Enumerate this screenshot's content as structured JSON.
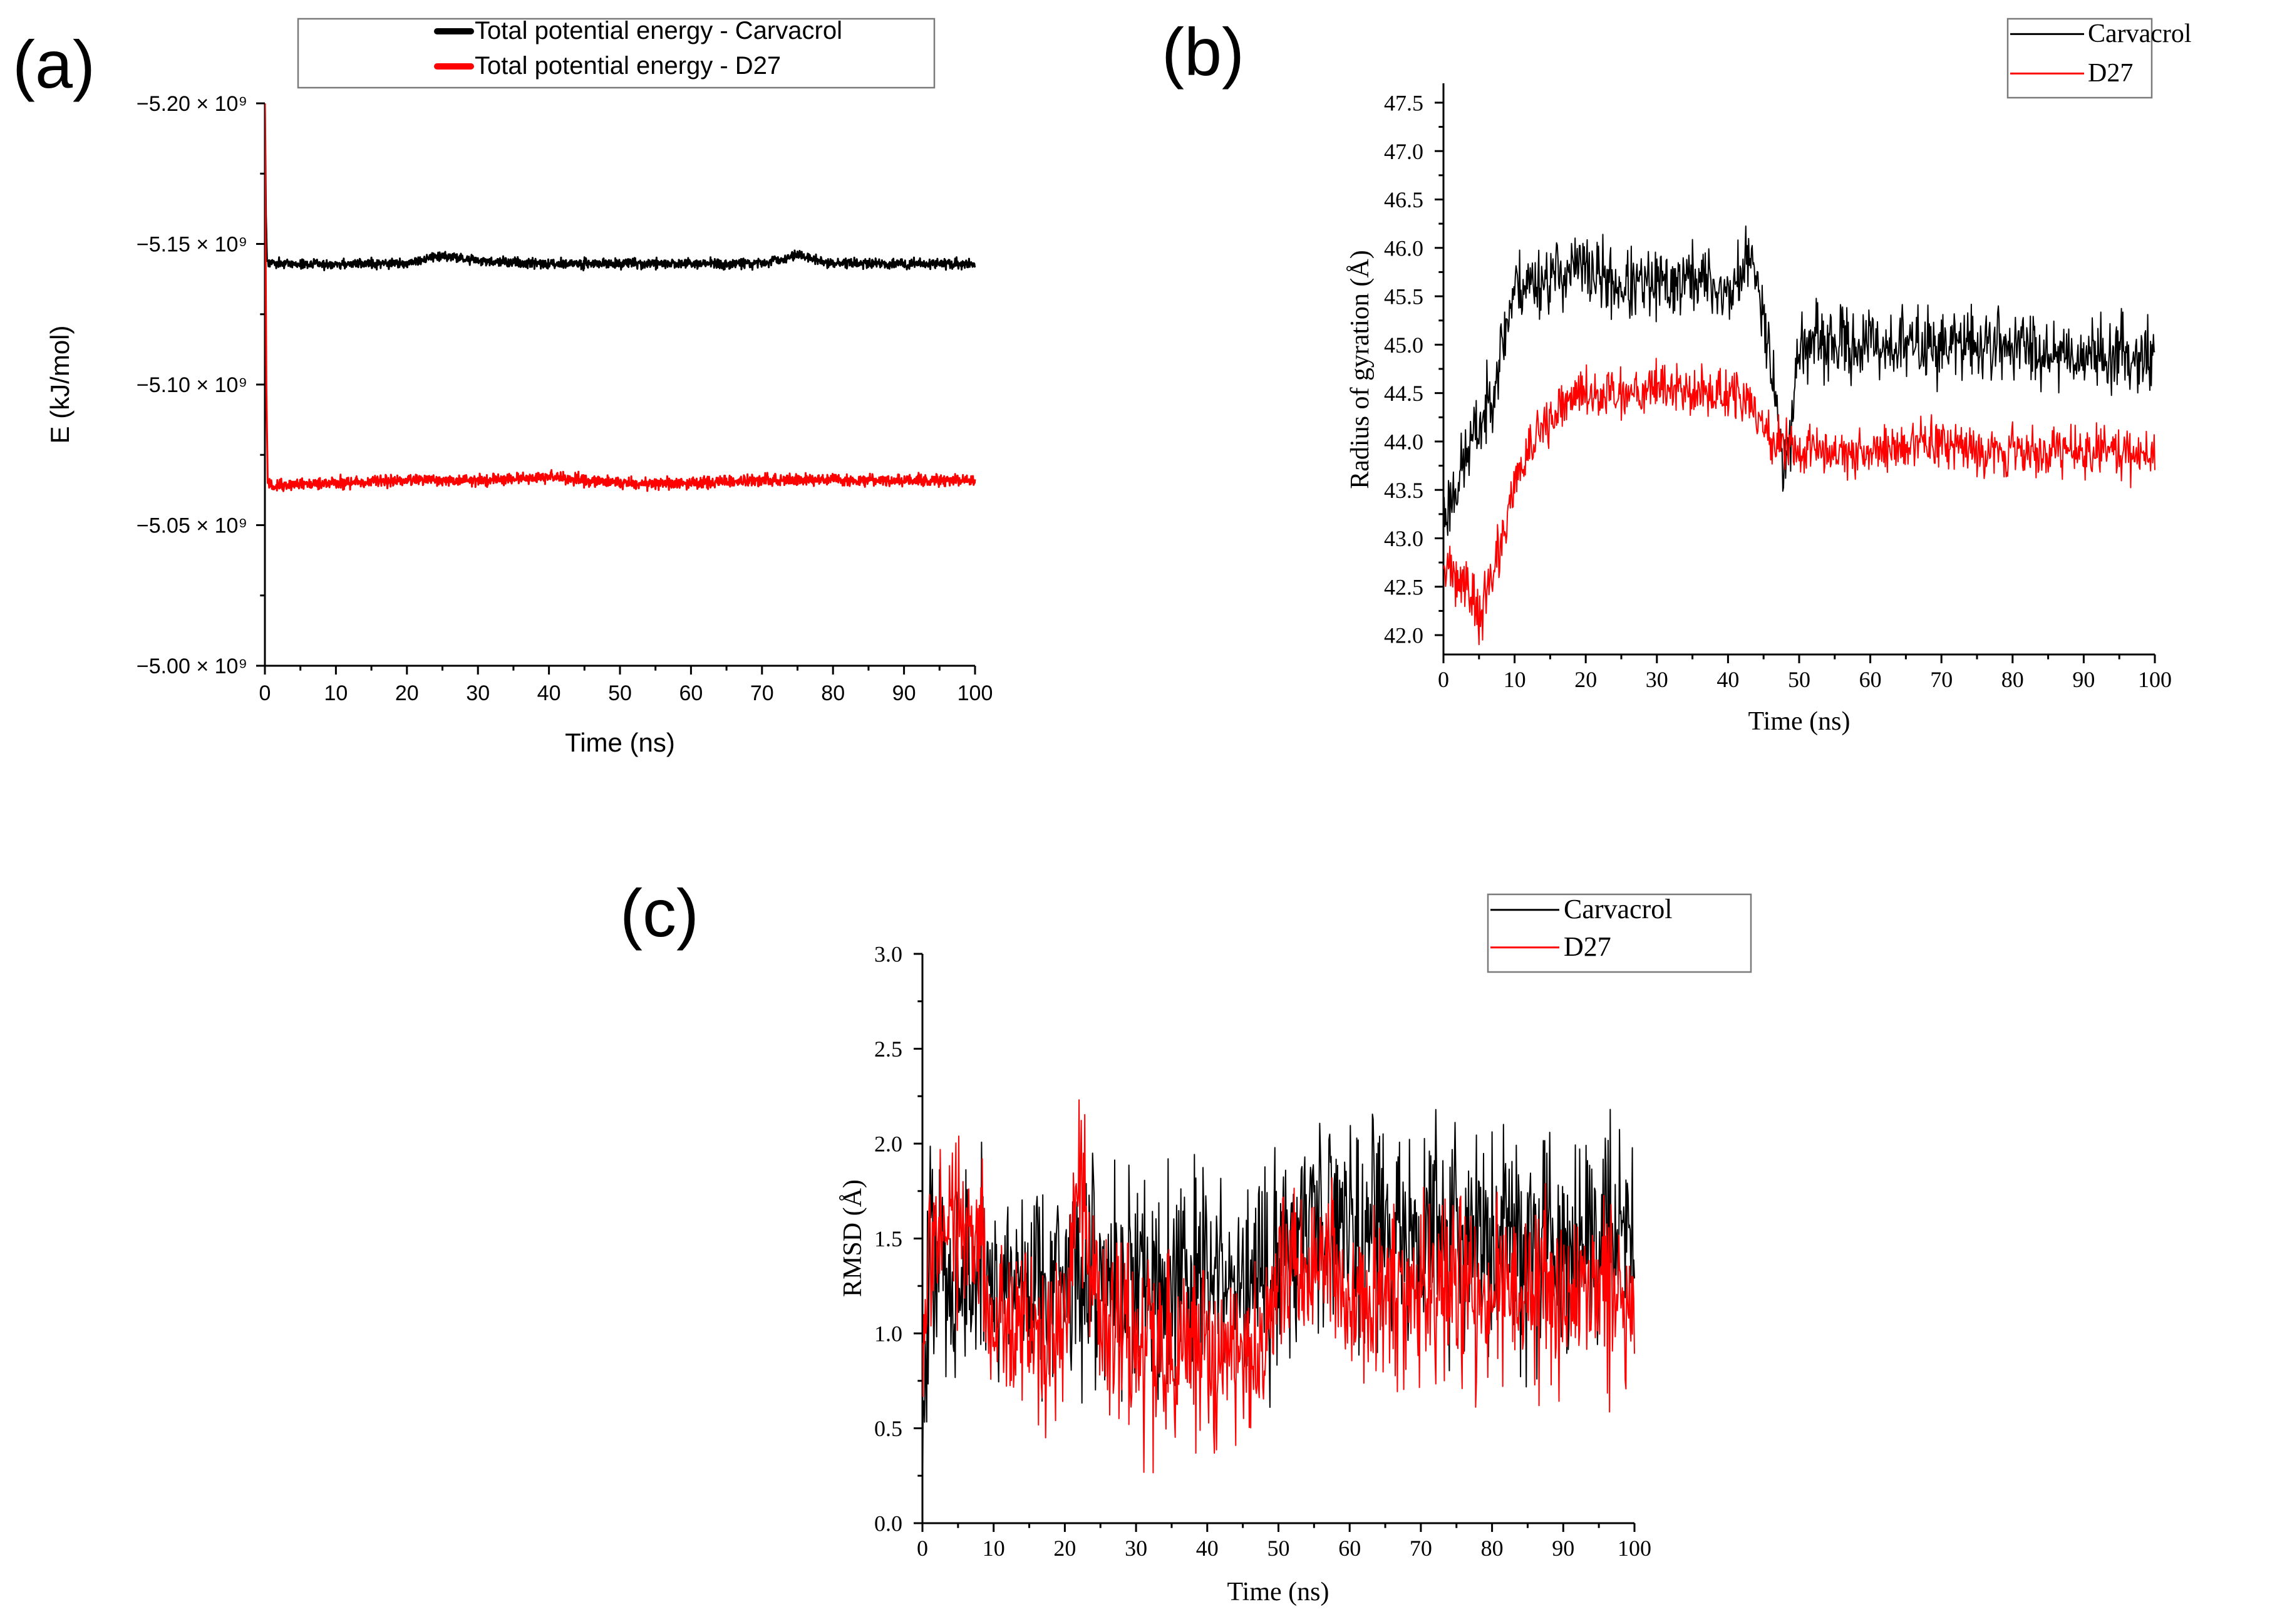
{
  "figure": {
    "panel_labels": [
      "(a)",
      "(b)",
      "(c)"
    ]
  },
  "chart_data": [
    {
      "id": "a",
      "type": "line",
      "title": "",
      "xlabel": "Time (ns)",
      "ylabel": "E (kJ/mol)",
      "xlim": [
        0,
        100
      ],
      "ylim": [
        -5.2,
        -5.0
      ],
      "y_axis_inverted": true,
      "y_scale_note": "values in units of 10^9 kJ/mol",
      "x_ticks": [
        0,
        10,
        20,
        30,
        40,
        50,
        60,
        70,
        80,
        90,
        100
      ],
      "y_ticks": [
        "−5.20 × 10⁹",
        "−5.15 × 10⁹",
        "−5.10 × 10⁹",
        "−5.05 × 10⁹",
        "−5.00 × 10⁹"
      ],
      "y_tick_values": [
        -5.2,
        -5.15,
        -5.1,
        -5.05,
        -5.0
      ],
      "legend_position": "top-center",
      "series": [
        {
          "name": "Total potential energy - Carvacrol",
          "color": "#000000",
          "line_width": 3,
          "x": [
            0,
            0.15,
            0.3,
            1,
            5,
            10,
            20,
            25,
            30,
            40,
            50,
            60,
            70,
            75,
            80,
            90,
            100
          ],
          "y": [
            -5.2,
            -5.16,
            -5.144,
            -5.143,
            -5.143,
            -5.143,
            -5.143,
            -5.146,
            -5.144,
            -5.143,
            -5.143,
            -5.143,
            -5.143,
            -5.146,
            -5.143,
            -5.143,
            -5.143
          ],
          "noise": 0.0025
        },
        {
          "name": "Total potential energy - D27",
          "color": "#ff0000",
          "line_width": 3,
          "x": [
            0,
            0.2,
            0.4,
            1,
            10,
            20,
            30,
            40,
            50,
            60,
            70,
            80,
            90,
            100
          ],
          "y": [
            -5.2,
            -5.1,
            -5.065,
            -5.064,
            -5.065,
            -5.066,
            -5.066,
            -5.067,
            -5.065,
            -5.065,
            -5.066,
            -5.066,
            -5.066,
            -5.066
          ],
          "noise": 0.003
        }
      ]
    },
    {
      "id": "b",
      "type": "line",
      "title": "",
      "xlabel": "Time (ns)",
      "ylabel": "Radius of gyration (Å)",
      "xlim": [
        0,
        100
      ],
      "ylim": [
        41.8,
        47.7
      ],
      "x_ticks": [
        0,
        10,
        20,
        30,
        40,
        50,
        60,
        70,
        80,
        90,
        100
      ],
      "y_ticks": [
        "42.0",
        "42.5",
        "43.0",
        "43.5",
        "44.0",
        "44.5",
        "45.0",
        "45.5",
        "46.0",
        "46.5",
        "47.0",
        "47.5"
      ],
      "y_tick_values": [
        42.0,
        42.5,
        43.0,
        43.5,
        44.0,
        44.5,
        45.0,
        45.5,
        46.0,
        46.5,
        47.0,
        47.5
      ],
      "legend_position": "top-right",
      "series": [
        {
          "name": "Carvacrol",
          "color": "#000000",
          "line_width": 2,
          "x": [
            0,
            2,
            4,
            6,
            8,
            10,
            15,
            19,
            25,
            30,
            36,
            40,
            43,
            45,
            47,
            48,
            50,
            60,
            70,
            80,
            90,
            100
          ],
          "y": [
            43.2,
            43.6,
            44.0,
            44.3,
            44.9,
            45.6,
            45.7,
            45.8,
            45.6,
            45.6,
            45.7,
            45.5,
            45.9,
            45.4,
            44.3,
            43.6,
            45.0,
            45.0,
            45.0,
            45.0,
            44.9,
            44.9
          ],
          "noise": 0.55
        },
        {
          "name": "D27",
          "color": "#ff0000",
          "line_width": 2,
          "x": [
            0,
            2,
            4,
            5,
            6,
            8,
            10,
            12,
            15,
            19,
            25,
            30,
            35,
            40,
            43,
            45,
            47,
            50,
            60,
            70,
            80,
            90,
            100
          ],
          "y": [
            42.7,
            42.6,
            42.4,
            42.2,
            42.4,
            42.9,
            43.6,
            43.9,
            44.2,
            44.5,
            44.5,
            44.6,
            44.5,
            44.5,
            44.4,
            44.1,
            44.0,
            43.9,
            43.9,
            44.0,
            43.9,
            43.9,
            43.9
          ],
          "noise": 0.4
        }
      ]
    },
    {
      "id": "c",
      "type": "line",
      "title": "",
      "xlabel": "Time (ns)",
      "ylabel": "RMSD (Å)",
      "xlim": [
        0,
        100
      ],
      "ylim": [
        0.0,
        3.0
      ],
      "x_ticks": [
        0,
        10,
        20,
        30,
        40,
        50,
        60,
        70,
        80,
        90,
        100
      ],
      "y_ticks": [
        "0.0",
        "0.5",
        "1.0",
        "1.5",
        "2.0",
        "2.5",
        "3.0"
      ],
      "y_tick_values": [
        0.0,
        0.5,
        1.0,
        1.5,
        2.0,
        2.5,
        3.0
      ],
      "legend_position": "top-right",
      "series": [
        {
          "name": "Carvacrol",
          "color": "#000000",
          "line_width": 2,
          "x": [
            0,
            1,
            5,
            10,
            20,
            30,
            40,
            48,
            50,
            55,
            58,
            60,
            70,
            80,
            90,
            100
          ],
          "y": [
            0.3,
            1.4,
            1.3,
            1.3,
            1.3,
            1.3,
            1.3,
            1.2,
            1.5,
            1.6,
            1.7,
            1.6,
            1.5,
            1.5,
            1.5,
            1.6
          ],
          "noise": 0.85
        },
        {
          "name": "D27",
          "color": "#ff0000",
          "line_width": 2,
          "x": [
            0,
            1,
            5,
            8,
            10,
            20,
            22,
            25,
            30,
            40,
            48,
            50,
            58,
            60,
            70,
            80,
            90,
            100
          ],
          "y": [
            0.8,
            1.5,
            1.6,
            1.5,
            1.0,
            1.1,
            1.8,
            1.1,
            0.9,
            0.9,
            0.9,
            1.3,
            1.3,
            1.2,
            1.2,
            1.2,
            1.2,
            1.2
          ],
          "noise": 0.7
        }
      ]
    }
  ]
}
